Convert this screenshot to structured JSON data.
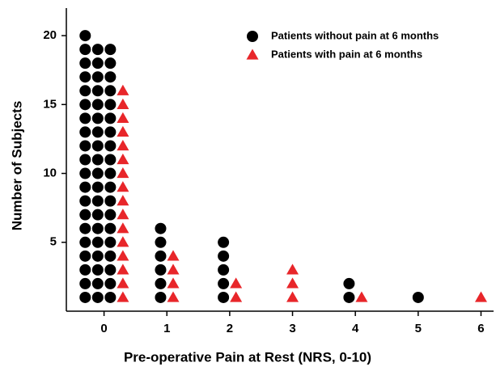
{
  "chart_data": {
    "type": "scatter",
    "x_label": "Pre-operative Pain at Rest (NRS, 0-10)",
    "y_label": "Number of Subjects",
    "xlim": [
      -0.6,
      6.2
    ],
    "xticks": [
      0,
      1,
      2,
      3,
      4,
      5,
      6
    ],
    "ylim": [
      0,
      22
    ],
    "yticks": [
      5,
      10,
      15,
      20
    ],
    "legend": "top-right",
    "series": [
      {
        "name": "Patients without pain at 6 months",
        "color": "#000000",
        "marker": "circle",
        "x": [
          -0.3,
          -0.3,
          -0.3,
          -0.3,
          -0.3,
          -0.3,
          -0.3,
          -0.3,
          -0.3,
          -0.3,
          -0.3,
          -0.3,
          -0.3,
          -0.3,
          -0.3,
          -0.3,
          -0.3,
          -0.3,
          -0.3,
          -0.3,
          -0.1,
          -0.1,
          -0.1,
          -0.1,
          -0.1,
          -0.1,
          -0.1,
          -0.1,
          -0.1,
          -0.1,
          -0.1,
          -0.1,
          -0.1,
          -0.1,
          -0.1,
          -0.1,
          -0.1,
          -0.1,
          -0.1,
          0.1,
          0.1,
          0.1,
          0.1,
          0.1,
          0.1,
          0.1,
          0.1,
          0.1,
          0.1,
          0.1,
          0.1,
          0.1,
          0.1,
          0.1,
          0.1,
          0.1,
          0.1,
          0.1,
          0.9,
          0.9,
          0.9,
          0.9,
          0.9,
          0.9,
          1.9,
          1.9,
          1.9,
          1.9,
          1.9,
          3.9,
          3.9,
          5.0
        ],
        "values": [
          1,
          2,
          3,
          4,
          5,
          6,
          7,
          8,
          9,
          10,
          11,
          12,
          13,
          14,
          15,
          16,
          17,
          18,
          19,
          20,
          1,
          2,
          3,
          4,
          5,
          6,
          7,
          8,
          9,
          10,
          11,
          12,
          13,
          14,
          15,
          16,
          17,
          18,
          19,
          1,
          2,
          3,
          4,
          5,
          6,
          7,
          8,
          9,
          10,
          11,
          12,
          13,
          14,
          15,
          16,
          17,
          18,
          19,
          1,
          2,
          3,
          4,
          5,
          6,
          1,
          2,
          3,
          4,
          5,
          1,
          2,
          1
        ]
      },
      {
        "name": "Patients with pain at 6 months",
        "color": "#e8262a",
        "marker": "triangle",
        "x": [
          0.3,
          0.3,
          0.3,
          0.3,
          0.3,
          0.3,
          0.3,
          0.3,
          0.3,
          0.3,
          0.3,
          0.3,
          0.3,
          0.3,
          0.3,
          0.3,
          1.1,
          1.1,
          1.1,
          1.1,
          2.1,
          2.1,
          3.0,
          3.0,
          3.0,
          4.1,
          6.0
        ],
        "values": [
          1,
          2,
          3,
          4,
          5,
          6,
          7,
          8,
          9,
          10,
          11,
          12,
          13,
          14,
          15,
          16,
          1,
          2,
          3,
          4,
          1,
          2,
          1,
          2,
          3,
          1,
          1
        ]
      }
    ]
  }
}
